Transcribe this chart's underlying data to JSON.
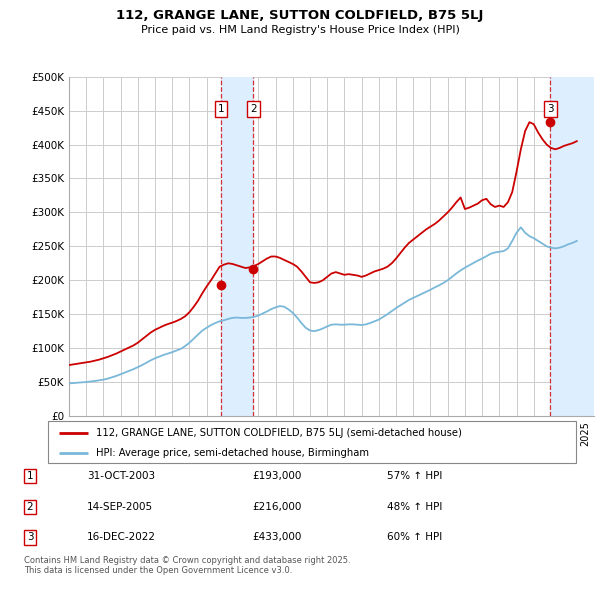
{
  "title": "112, GRANGE LANE, SUTTON COLDFIELD, B75 5LJ",
  "subtitle": "Price paid vs. HM Land Registry's House Price Index (HPI)",
  "ylim": [
    0,
    500000
  ],
  "yticks": [
    0,
    50000,
    100000,
    150000,
    200000,
    250000,
    300000,
    350000,
    400000,
    450000,
    500000
  ],
  "ytick_labels": [
    "£0",
    "£50K",
    "£100K",
    "£150K",
    "£200K",
    "£250K",
    "£300K",
    "£350K",
    "£400K",
    "£450K",
    "£500K"
  ],
  "xlim_start": 1995.0,
  "xlim_end": 2025.5,
  "hpi_color": "#7ab8d9",
  "price_color": "#cc0000",
  "grid_color": "#cccccc",
  "shade_color": "#ddeeff",
  "sales": [
    {
      "num": 1,
      "date": "31-OCT-2003",
      "price": 193000,
      "year": 2003.83,
      "price_str": "£193,000",
      "hpi_str": "57% ↑ HPI"
    },
    {
      "num": 2,
      "date": "14-SEP-2005",
      "price": 216000,
      "year": 2005.71,
      "price_str": "£216,000",
      "hpi_str": "48% ↑ HPI"
    },
    {
      "num": 3,
      "date": "16-DEC-2022",
      "price": 433000,
      "year": 2022.96,
      "price_str": "£433,000",
      "hpi_str": "60% ↑ HPI"
    }
  ],
  "legend_line1": "112, GRANGE LANE, SUTTON COLDFIELD, B75 5LJ (semi-detached house)",
  "legend_line2": "HPI: Average price, semi-detached house, Birmingham",
  "footnote": "Contains HM Land Registry data © Crown copyright and database right 2025.\nThis data is licensed under the Open Government Licence v3.0.",
  "hpi_data_years": [
    1995.0,
    1995.25,
    1995.5,
    1995.75,
    1996.0,
    1996.25,
    1996.5,
    1996.75,
    1997.0,
    1997.25,
    1997.5,
    1997.75,
    1998.0,
    1998.25,
    1998.5,
    1998.75,
    1999.0,
    1999.25,
    1999.5,
    1999.75,
    2000.0,
    2000.25,
    2000.5,
    2000.75,
    2001.0,
    2001.25,
    2001.5,
    2001.75,
    2002.0,
    2002.25,
    2002.5,
    2002.75,
    2003.0,
    2003.25,
    2003.5,
    2003.75,
    2004.0,
    2004.25,
    2004.5,
    2004.75,
    2005.0,
    2005.25,
    2005.5,
    2005.75,
    2006.0,
    2006.25,
    2006.5,
    2006.75,
    2007.0,
    2007.25,
    2007.5,
    2007.75,
    2008.0,
    2008.25,
    2008.5,
    2008.75,
    2009.0,
    2009.25,
    2009.5,
    2009.75,
    2010.0,
    2010.25,
    2010.5,
    2010.75,
    2011.0,
    2011.25,
    2011.5,
    2011.75,
    2012.0,
    2012.25,
    2012.5,
    2012.75,
    2013.0,
    2013.25,
    2013.5,
    2013.75,
    2014.0,
    2014.25,
    2014.5,
    2014.75,
    2015.0,
    2015.25,
    2015.5,
    2015.75,
    2016.0,
    2016.25,
    2016.5,
    2016.75,
    2017.0,
    2017.25,
    2017.5,
    2017.75,
    2018.0,
    2018.25,
    2018.5,
    2018.75,
    2019.0,
    2019.25,
    2019.5,
    2019.75,
    2020.0,
    2020.25,
    2020.5,
    2020.75,
    2021.0,
    2021.25,
    2021.5,
    2021.75,
    2022.0,
    2022.25,
    2022.5,
    2022.75,
    2023.0,
    2023.25,
    2023.5,
    2023.75,
    2024.0,
    2024.25,
    2024.5
  ],
  "hpi_data_values": [
    48000,
    48500,
    49000,
    49500,
    50000,
    50800,
    51500,
    52500,
    53500,
    55000,
    57000,
    59000,
    61500,
    64000,
    66500,
    69000,
    72000,
    75000,
    78500,
    82000,
    85000,
    87500,
    90000,
    92000,
    94000,
    96500,
    99000,
    103000,
    108000,
    114000,
    120000,
    126000,
    130000,
    134000,
    137000,
    139500,
    141000,
    143000,
    144500,
    145000,
    144500,
    144500,
    145000,
    146000,
    148000,
    151000,
    154000,
    157500,
    160000,
    162000,
    161000,
    157000,
    152000,
    145000,
    137000,
    130000,
    126000,
    125000,
    126500,
    129000,
    132000,
    134500,
    135000,
    134500,
    134500,
    135000,
    135000,
    134500,
    134000,
    135000,
    137000,
    139500,
    142000,
    146000,
    150000,
    154500,
    159000,
    163000,
    167000,
    171000,
    174000,
    177000,
    180000,
    183000,
    186000,
    189500,
    192500,
    196000,
    200000,
    205000,
    210000,
    214500,
    218500,
    222000,
    225500,
    229000,
    232000,
    235500,
    239000,
    241000,
    242000,
    243000,
    247000,
    258000,
    270000,
    278000,
    270000,
    265000,
    262000,
    258000,
    254000,
    250000,
    248000,
    247000,
    248000,
    250000,
    253000,
    255000,
    258000
  ],
  "price_data_years": [
    1995.0,
    1995.25,
    1995.5,
    1995.75,
    1996.0,
    1996.25,
    1996.5,
    1996.75,
    1997.0,
    1997.25,
    1997.5,
    1997.75,
    1998.0,
    1998.25,
    1998.5,
    1998.75,
    1999.0,
    1999.25,
    1999.5,
    1999.75,
    2000.0,
    2000.25,
    2000.5,
    2000.75,
    2001.0,
    2001.25,
    2001.5,
    2001.75,
    2002.0,
    2002.25,
    2002.5,
    2002.75,
    2003.0,
    2003.25,
    2003.5,
    2003.75,
    2004.0,
    2004.25,
    2004.5,
    2004.75,
    2005.0,
    2005.25,
    2005.5,
    2005.75,
    2006.0,
    2006.25,
    2006.5,
    2006.75,
    2007.0,
    2007.25,
    2007.5,
    2007.75,
    2008.0,
    2008.25,
    2008.5,
    2008.75,
    2009.0,
    2009.25,
    2009.5,
    2009.75,
    2010.0,
    2010.25,
    2010.5,
    2010.75,
    2011.0,
    2011.25,
    2011.5,
    2011.75,
    2012.0,
    2012.25,
    2012.5,
    2012.75,
    2013.0,
    2013.25,
    2013.5,
    2013.75,
    2014.0,
    2014.25,
    2014.5,
    2014.75,
    2015.0,
    2015.25,
    2015.5,
    2015.75,
    2016.0,
    2016.25,
    2016.5,
    2016.75,
    2017.0,
    2017.25,
    2017.5,
    2017.75,
    2018.0,
    2018.25,
    2018.5,
    2018.75,
    2019.0,
    2019.25,
    2019.5,
    2019.75,
    2020.0,
    2020.25,
    2020.5,
    2020.75,
    2021.0,
    2021.25,
    2021.5,
    2021.75,
    2022.0,
    2022.25,
    2022.5,
    2022.75,
    2023.0,
    2023.25,
    2023.5,
    2023.75,
    2024.0,
    2024.25,
    2024.5
  ],
  "price_data_values": [
    75000,
    76000,
    77000,
    78000,
    79000,
    80000,
    81500,
    83000,
    85000,
    87000,
    89500,
    92000,
    95000,
    98000,
    101000,
    104000,
    108000,
    113000,
    118000,
    123000,
    127000,
    130000,
    133000,
    135500,
    137500,
    140000,
    143000,
    147000,
    153000,
    161000,
    170000,
    181000,
    191000,
    200000,
    210000,
    220000,
    223000,
    225000,
    224000,
    222000,
    220000,
    218000,
    219000,
    221000,
    224000,
    228000,
    232000,
    235000,
    235000,
    233000,
    230000,
    227000,
    224000,
    220000,
    213000,
    205000,
    197000,
    196000,
    197000,
    200000,
    205000,
    210000,
    212000,
    210000,
    208000,
    209000,
    208000,
    207000,
    205000,
    207000,
    210000,
    213000,
    215000,
    217000,
    220000,
    225000,
    232000,
    240000,
    248000,
    255000,
    260000,
    265000,
    270000,
    275000,
    279000,
    283000,
    288000,
    294000,
    300000,
    307000,
    315000,
    322000,
    305000,
    307000,
    310000,
    313000,
    318000,
    320000,
    312000,
    308000,
    310000,
    308000,
    315000,
    330000,
    360000,
    393000,
    420000,
    433000,
    430000,
    418000,
    408000,
    400000,
    395000,
    393000,
    395000,
    398000,
    400000,
    402000,
    405000
  ]
}
